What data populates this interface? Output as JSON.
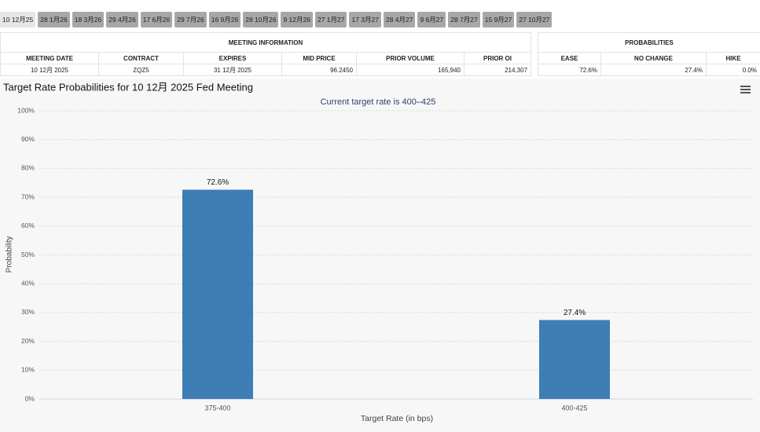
{
  "tabs": [
    "10 12月25",
    "28 1月26",
    "18 3月26",
    "29 4月26",
    "17 6月26",
    "29 7月26",
    "16 9月26",
    "28 10月26",
    "9 12月26",
    "27 1月27",
    "17 3月27",
    "28 4月27",
    "9 6月27",
    "28 7月27",
    "15 9月27",
    "27 10月27"
  ],
  "meeting_table": {
    "title": "MEETING INFORMATION",
    "headers": [
      "MEETING DATE",
      "CONTRACT",
      "EXPIRES",
      "MID PRICE",
      "PRIOR VOLUME",
      "PRIOR OI"
    ],
    "rows": [
      [
        "10 12月 2025",
        "ZQZ5",
        "31 12月 2025",
        "96.2450",
        "165,940",
        "214,307"
      ]
    ]
  },
  "probabilities_table": {
    "title": "PROBABILITIES",
    "headers": [
      "EASE",
      "NO CHANGE",
      "HIKE"
    ],
    "rows": [
      [
        "72.6%",
        "27.4%",
        "0.0%"
      ]
    ]
  },
  "chart_data": {
    "type": "bar",
    "title": "Target Rate Probabilities for 10 12月 2025 Fed Meeting",
    "subtitle": "Current target rate is 400–425",
    "x_label": "Target Rate (in bps)",
    "y_label": "Probability",
    "categories": [
      "375-400",
      "400-425"
    ],
    "values": [
      72.6,
      27.4
    ],
    "value_labels": [
      "72.6%",
      "27.4%"
    ],
    "color": "#3f7db5",
    "ylim": [
      0,
      100
    ],
    "yticks": [
      {
        "value": 0,
        "label": "0%"
      },
      {
        "value": 10,
        "label": "10%"
      },
      {
        "value": 20,
        "label": "20%"
      },
      {
        "value": 30,
        "label": "30%"
      },
      {
        "value": 40,
        "label": "40%"
      },
      {
        "value": 50,
        "label": "50%"
      },
      {
        "value": 60,
        "label": "60%"
      },
      {
        "value": 70,
        "label": "70%"
      },
      {
        "value": 80,
        "label": "80%"
      },
      {
        "value": 90,
        "label": "90%"
      },
      {
        "value": 100,
        "label": "100%"
      }
    ],
    "grid": true
  }
}
